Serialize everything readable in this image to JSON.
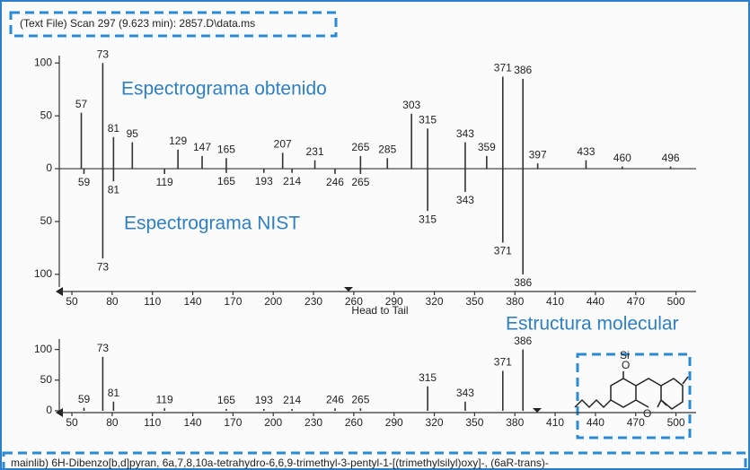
{
  "header": {
    "title": "(Text File) Scan 297 (9.623 min): 2857.D\\data.ms"
  },
  "structure": {
    "title": "Estructura molecular",
    "atoms": [
      "Si",
      "O",
      "O"
    ]
  },
  "caption": "mainlib) 6H-Dibenzo[b,d]pyran, 6a,7,8,10a-tetrahydro-6,6,9-trimethyl-3-pentyl-1-[(trimethylsilyl)oxy]-, (6aR-trans)-",
  "chart_data": [
    {
      "type": "bar",
      "x_label": "Head to Tail",
      "x": [
        57,
        59,
        73,
        81,
        95,
        119,
        129,
        147,
        165,
        193,
        207,
        214,
        231,
        246,
        265,
        285,
        303,
        315,
        343,
        359,
        371,
        386,
        397,
        433,
        460,
        496
      ],
      "series": [
        {
          "name": "Espectrograma obtenido",
          "color": "#333333",
          "values": [
            53,
            null,
            100,
            30,
            25,
            null,
            18,
            12,
            10,
            null,
            15,
            null,
            8,
            null,
            12,
            10,
            52,
            38,
            25,
            12,
            87,
            85,
            5,
            8,
            2,
            2
          ]
        },
        {
          "name": "Espectrograma NIST",
          "color": "#333333",
          "values": [
            null,
            -5,
            -85,
            -12,
            null,
            -5,
            null,
            null,
            -4,
            -4,
            null,
            -4,
            null,
            -5,
            -5,
            null,
            null,
            -40,
            -22,
            null,
            -70,
            -100,
            null,
            null,
            null,
            null
          ]
        }
      ],
      "xlim": [
        40.6,
        515
      ],
      "xticks": [
        50,
        80,
        110,
        140,
        170,
        200,
        230,
        260,
        290,
        320,
        350,
        380,
        410,
        440,
        470,
        500
      ],
      "ylim": [
        -112,
        107
      ],
      "yticks": [
        {
          "value": -100,
          "label": "100"
        },
        {
          "value": -50,
          "label": "50"
        },
        0,
        50,
        100
      ]
    },
    {
      "type": "bar",
      "color": "#333333",
      "x": [
        59,
        73,
        81,
        119,
        165,
        193,
        214,
        246,
        265,
        315,
        343,
        371,
        386
      ],
      "values": [
        5,
        88,
        15,
        4,
        3,
        3,
        3,
        4,
        4,
        40,
        15,
        65,
        100
      ],
      "xlim": [
        40.6,
        515
      ],
      "xticks": [
        50,
        80,
        110,
        140,
        170,
        200,
        230,
        260,
        290,
        320,
        350,
        380,
        410,
        440,
        470,
        500
      ],
      "ylim": [
        0,
        117
      ],
      "yticks": [
        0,
        50,
        100
      ]
    }
  ]
}
